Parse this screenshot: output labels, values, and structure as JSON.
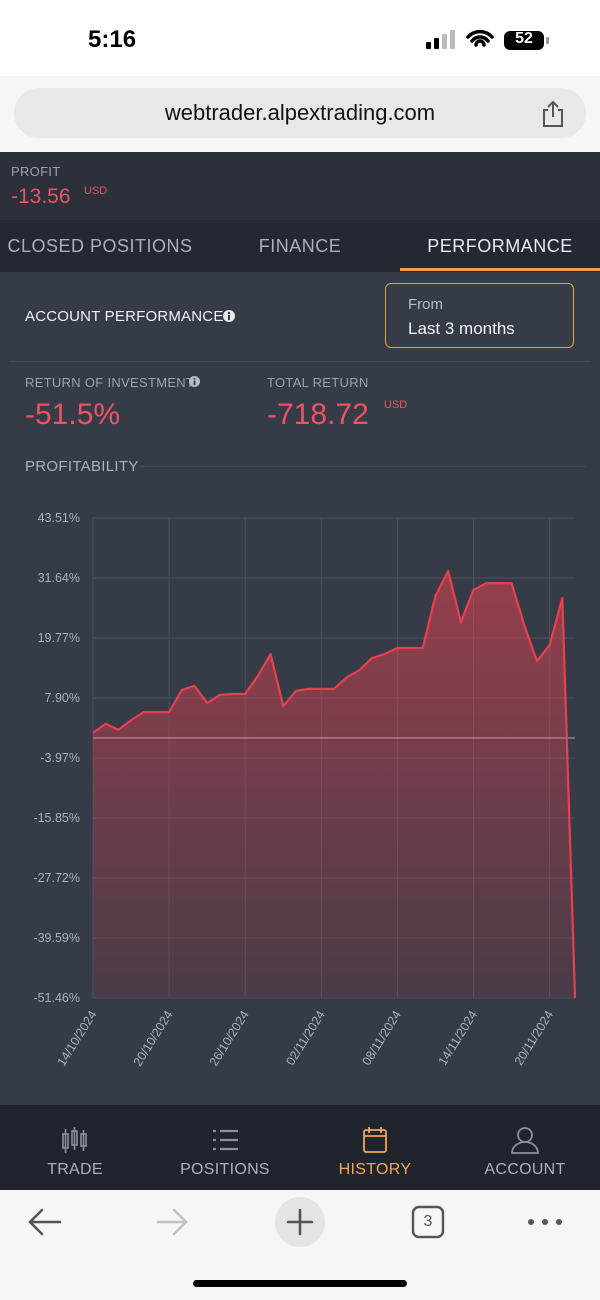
{
  "status_bar": {
    "time": "5:16",
    "battery": "52"
  },
  "browser": {
    "url": "webtrader.alpextrading.com",
    "tab_count": "3"
  },
  "profit": {
    "label": "PROFIT",
    "value": "-13.56",
    "currency": "USD"
  },
  "tabs": [
    "CLOSED POSITIONS",
    "FINANCE",
    "PERFORMANCE"
  ],
  "active_tab": 2,
  "performance": {
    "title": "ACCOUNT PERFORMANCE",
    "period_label": "From",
    "period": "Last 3 months",
    "roi_label": "RETURN OF INVESTMENT",
    "roi": "-51.5%",
    "total_return_label": "TOTAL RETURN",
    "total_return": "-718.72",
    "total_return_currency": "USD",
    "section": "PROFITABILITY"
  },
  "chart_data": {
    "type": "area",
    "color": "#e8404f",
    "grid": true,
    "categories": [
      "14/10/2024",
      null,
      null,
      null,
      null,
      null,
      "20/10/2024",
      null,
      null,
      null,
      null,
      null,
      "26/10/2024",
      null,
      null,
      null,
      null,
      null,
      "02/11/2024",
      null,
      null,
      null,
      null,
      null,
      "08/11/2024",
      null,
      null,
      null,
      null,
      null,
      "14/11/2024",
      null,
      null,
      null,
      null,
      null,
      "20/11/2024",
      null,
      null
    ],
    "values": [
      1.0,
      2.8,
      1.6,
      3.5,
      5.1,
      5.1,
      5.1,
      9.5,
      10.3,
      6.9,
      8.5,
      8.7,
      8.7,
      12.3,
      16.6,
      6.3,
      9.3,
      9.7,
      9.7,
      9.7,
      12.0,
      13.4,
      15.8,
      16.6,
      17.8,
      17.8,
      17.8,
      28.1,
      33.0,
      22.9,
      29.3,
      30.6,
      30.6,
      30.6,
      22.3,
      15.2,
      18.4,
      27.7,
      -51.46
    ],
    "ylim": [
      -51.46,
      43.51
    ],
    "yticks": [
      {
        "value": 43.51,
        "label": "43.51%"
      },
      {
        "value": 31.64,
        "label": "31.64%"
      },
      {
        "value": 19.77,
        "label": "19.77%"
      },
      {
        "value": 7.9,
        "label": "7.90%"
      },
      {
        "value": -3.97,
        "label": "-3.97%"
      },
      {
        "value": -15.85,
        "label": "-15.85%"
      },
      {
        "value": -27.72,
        "label": "-27.72%"
      },
      {
        "value": -39.59,
        "label": "-39.59%"
      },
      {
        "value": -51.46,
        "label": "-51.46%"
      }
    ]
  },
  "nav": [
    "TRADE",
    "POSITIONS",
    "HISTORY",
    "ACCOUNT"
  ],
  "active_nav": 2
}
